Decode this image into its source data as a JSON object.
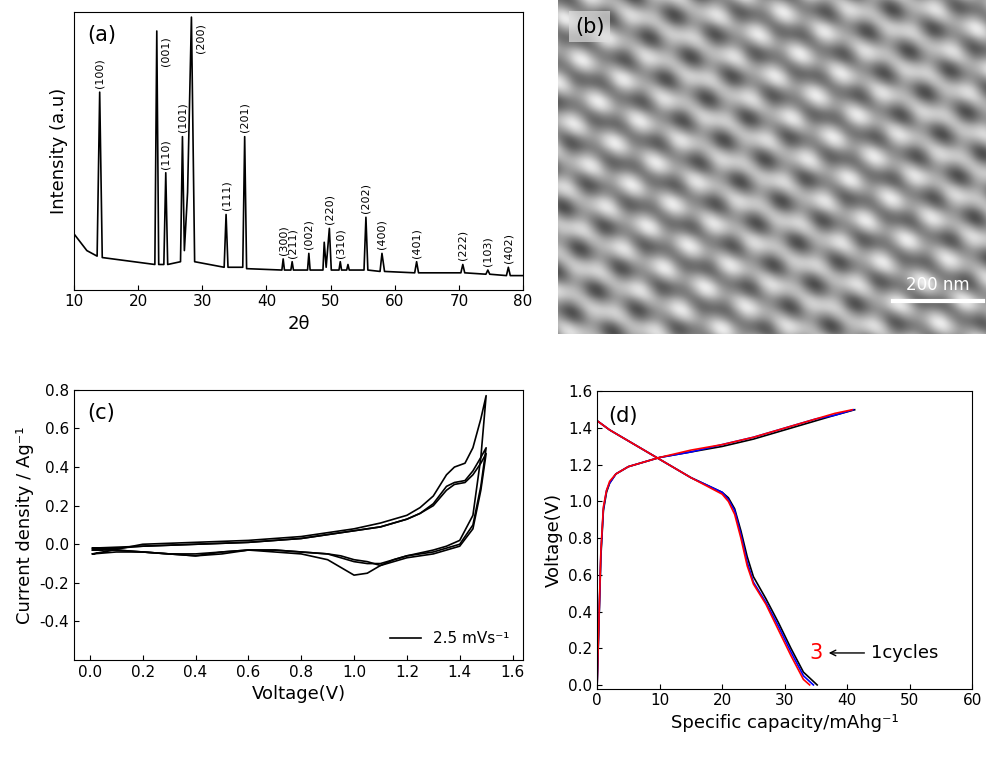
{
  "chart_data": [
    {
      "type": "line",
      "annotations": [
        "(a)"
      ],
      "xlabel": "2θ",
      "ylabel": "Intensity (a.u)",
      "color": "#000000",
      "x": [
        10,
        11,
        12,
        13.6,
        14.0,
        14.4,
        22.6,
        22.9,
        23.2,
        24.0,
        24.3,
        24.6,
        26.6,
        26.9,
        27.2,
        27.7,
        28.3,
        28.8,
        33.4,
        33.7,
        34.0,
        36.3,
        36.6,
        36.9,
        42.4,
        42.6,
        42.8,
        43.8,
        44.0,
        44.2,
        46.4,
        46.6,
        46.8,
        48.8,
        49.0,
        49.3,
        49.8,
        50.1,
        51.3,
        51.5,
        51.7,
        52.5,
        52.7,
        52.9,
        55.2,
        55.5,
        55.8,
        57.7,
        58.0,
        58.4,
        63.1,
        63.4,
        63.7,
        70.3,
        70.6,
        70.9,
        74.2,
        74.5,
        74.8,
        77.4,
        77.7,
        78.0,
        80
      ],
      "values": [
        20,
        17,
        14,
        12,
        71,
        11.5,
        9,
        93,
        9,
        9,
        42,
        9,
        10,
        55,
        14,
        35,
        98,
        10,
        8,
        27,
        8,
        8,
        55,
        7.5,
        7,
        11,
        7,
        7,
        10,
        7,
        7,
        13,
        7,
        7,
        17,
        8,
        22,
        7,
        7,
        10,
        7,
        7,
        9,
        7,
        7,
        26,
        7,
        6.5,
        13,
        6.5,
        6,
        10,
        6,
        6,
        9,
        6,
        5.5,
        7,
        5.5,
        5,
        8,
        5,
        5
      ],
      "xlim": [
        10,
        80
      ],
      "xticks": [
        10,
        20,
        30,
        40,
        50,
        60,
        70,
        80
      ],
      "ylim": [
        0,
        100
      ],
      "tick_labels": "x",
      "peak_labels": [
        {
          "x": 14.0,
          "label": "(100)"
        },
        {
          "x": 22.9,
          "label": "(001)"
        },
        {
          "x": 24.3,
          "label": "(110)"
        },
        {
          "x": 26.9,
          "label": "(101)"
        },
        {
          "x": 28.3,
          "label": "(200)"
        },
        {
          "x": 33.7,
          "label": "(111)"
        },
        {
          "x": 36.6,
          "label": "(201)"
        },
        {
          "x": 42.6,
          "label": "(300)"
        },
        {
          "x": 44.0,
          "label": "(211)"
        },
        {
          "x": 46.6,
          "label": "(002)"
        },
        {
          "x": 49.8,
          "label": "(220)"
        },
        {
          "x": 51.5,
          "label": "(310)"
        },
        {
          "x": 55.5,
          "label": "(202)"
        },
        {
          "x": 58.0,
          "label": "(400)"
        },
        {
          "x": 63.4,
          "label": "(401)"
        },
        {
          "x": 70.6,
          "label": "(222)"
        },
        {
          "x": 74.5,
          "label": "(103)"
        },
        {
          "x": 77.7,
          "label": "(402)"
        }
      ]
    },
    {
      "type": "image",
      "annotations": [
        "(b)",
        "200 nm"
      ]
    },
    {
      "type": "line",
      "annotations": [
        "(c)"
      ],
      "xlabel": "Voltage(V)",
      "ylabel": "Current density / Ag⁻¹",
      "xlim": [
        -0.06,
        1.64
      ],
      "xticks": [
        {
          "value": 0,
          "label": "0.0"
        },
        0.2,
        0.4,
        0.6,
        0.8,
        {
          "value": 1,
          "label": "1.0"
        },
        1.2,
        1.4,
        1.6
      ],
      "ylim": [
        -0.6,
        0.8
      ],
      "yticks": [
        -0.4,
        -0.2,
        {
          "value": 0,
          "label": "0.0"
        },
        0.2,
        0.4,
        0.6,
        0.8
      ],
      "legend": "lower right",
      "series": [
        {
          "name": "2.5 mVs⁻¹",
          "color": "#000000",
          "x": [
            0.01,
            0.2,
            0.4,
            0.6,
            0.8,
            0.9,
            1.0,
            1.1,
            1.2,
            1.25,
            1.3,
            1.35,
            1.38,
            1.42,
            1.45,
            1.48,
            1.5,
            1.5,
            1.48,
            1.45,
            1.4,
            1.35,
            1.3,
            1.2,
            1.15,
            1.1,
            1.05,
            1.0,
            0.95,
            0.9,
            0.8,
            0.7,
            0.6,
            0.5,
            0.4,
            0.3,
            0.2,
            0.1,
            0.01
          ],
          "values": [
            -0.05,
            0.0,
            0.01,
            0.02,
            0.04,
            0.06,
            0.08,
            0.11,
            0.15,
            0.19,
            0.25,
            0.36,
            0.4,
            0.42,
            0.5,
            0.65,
            0.77,
            0.77,
            0.45,
            0.15,
            0.02,
            -0.01,
            -0.03,
            -0.06,
            -0.08,
            -0.11,
            -0.15,
            -0.16,
            -0.12,
            -0.08,
            -0.05,
            -0.04,
            -0.03,
            -0.05,
            -0.06,
            -0.05,
            -0.04,
            -0.04,
            -0.05
          ]
        },
        {
          "color": "#000000",
          "x": [
            0.01,
            0.2,
            0.4,
            0.6,
            0.8,
            0.9,
            1.0,
            1.1,
            1.2,
            1.25,
            1.3,
            1.35,
            1.38,
            1.42,
            1.45,
            1.48,
            1.5,
            1.5,
            1.48,
            1.45,
            1.4,
            1.35,
            1.3,
            1.2,
            1.15,
            1.1,
            1.05,
            1.0,
            0.95,
            0.9,
            0.8,
            0.7,
            0.6,
            0.5,
            0.4,
            0.3,
            0.2,
            0.1,
            0.01
          ],
          "values": [
            -0.03,
            -0.01,
            0.0,
            0.01,
            0.03,
            0.05,
            0.07,
            0.09,
            0.13,
            0.16,
            0.21,
            0.3,
            0.32,
            0.33,
            0.38,
            0.45,
            0.5,
            0.5,
            0.3,
            0.1,
            0.0,
            -0.02,
            -0.04,
            -0.06,
            -0.08,
            -0.1,
            -0.1,
            -0.09,
            -0.07,
            -0.05,
            -0.04,
            -0.03,
            -0.03,
            -0.04,
            -0.06,
            -0.05,
            -0.04,
            -0.03,
            -0.03
          ]
        },
        {
          "color": "#000000",
          "x": [
            0.01,
            0.2,
            0.4,
            0.6,
            0.8,
            0.9,
            1.0,
            1.1,
            1.2,
            1.25,
            1.3,
            1.35,
            1.38,
            1.42,
            1.45,
            1.48,
            1.5,
            1.5,
            1.48,
            1.45,
            1.4,
            1.35,
            1.3,
            1.2,
            1.15,
            1.1,
            1.05,
            1.0,
            0.95,
            0.9,
            0.8,
            0.7,
            0.6,
            0.5,
            0.4,
            0.3,
            0.2,
            0.1,
            0.01
          ],
          "values": [
            -0.02,
            -0.01,
            0.0,
            0.01,
            0.03,
            0.05,
            0.07,
            0.09,
            0.13,
            0.16,
            0.2,
            0.28,
            0.31,
            0.32,
            0.36,
            0.42,
            0.47,
            0.47,
            0.28,
            0.08,
            -0.01,
            -0.03,
            -0.05,
            -0.07,
            -0.09,
            -0.11,
            -0.09,
            -0.08,
            -0.06,
            -0.05,
            -0.04,
            -0.03,
            -0.03,
            -0.04,
            -0.05,
            -0.05,
            -0.04,
            -0.03,
            -0.02
          ]
        }
      ]
    },
    {
      "type": "line",
      "annotations": [
        "(d)",
        {
          "text": "3",
          "color": "#ff0000"
        },
        {
          "text": "1cycles"
        }
      ],
      "xlabel": "Specific capacity/mAhg⁻¹",
      "ylabel": "Voltage(V)",
      "xlim": [
        0,
        60
      ],
      "xticks": [
        0,
        10,
        20,
        30,
        40,
        50,
        60
      ],
      "ylim": [
        -0.02,
        1.6
      ],
      "yticks": [
        {
          "value": 0,
          "label": "0.0"
        },
        0.2,
        0.4,
        0.6,
        0.8,
        {
          "value": 1,
          "label": "1.0"
        },
        1.2,
        1.4,
        1.6
      ],
      "series": [
        {
          "color": "#000000",
          "x": [
            0,
            2,
            5,
            10,
            15,
            20,
            21,
            22,
            23,
            24,
            25,
            27,
            29,
            31,
            33,
            35.2
          ],
          "values": [
            1.44,
            1.39,
            1.33,
            1.23,
            1.13,
            1.05,
            1.02,
            0.96,
            0.84,
            0.7,
            0.59,
            0.47,
            0.34,
            0.2,
            0.07,
            0.0
          ]
        },
        {
          "color": "#000000",
          "x": [
            0,
            0.3,
            0.6,
            1,
            1.5,
            2,
            3,
            5,
            10,
            15,
            20,
            25,
            30,
            35,
            38,
            41.2
          ],
          "values": [
            0.0,
            0.35,
            0.7,
            0.95,
            1.05,
            1.1,
            1.15,
            1.19,
            1.24,
            1.27,
            1.3,
            1.34,
            1.39,
            1.44,
            1.47,
            1.5
          ]
        },
        {
          "color": "#0000ff",
          "x": [
            0,
            2,
            5,
            10,
            15,
            20,
            21,
            22,
            23,
            24,
            25,
            27,
            29,
            31,
            33,
            34.6
          ],
          "values": [
            1.44,
            1.39,
            1.33,
            1.23,
            1.13,
            1.05,
            1.01,
            0.95,
            0.82,
            0.67,
            0.56,
            0.45,
            0.32,
            0.18,
            0.05,
            0.0
          ]
        },
        {
          "color": "#0000ff",
          "x": [
            0,
            0.3,
            0.6,
            1,
            1.5,
            2,
            3,
            5,
            10,
            15,
            20,
            25,
            30,
            35,
            38,
            41.0
          ],
          "values": [
            0.0,
            0.36,
            0.72,
            0.96,
            1.06,
            1.1,
            1.15,
            1.19,
            1.24,
            1.27,
            1.31,
            1.35,
            1.4,
            1.45,
            1.47,
            1.5
          ]
        },
        {
          "color": "#ff0000",
          "x": [
            0,
            2,
            5,
            10,
            15,
            20,
            21,
            22,
            23,
            24,
            25,
            27,
            29,
            31,
            33,
            34.0
          ],
          "values": [
            1.44,
            1.39,
            1.33,
            1.23,
            1.13,
            1.04,
            1.0,
            0.93,
            0.8,
            0.65,
            0.55,
            0.44,
            0.3,
            0.16,
            0.03,
            0.0
          ]
        },
        {
          "color": "#ff0000",
          "x": [
            0,
            0.3,
            0.6,
            1,
            1.5,
            2,
            3,
            5,
            10,
            15,
            20,
            25,
            30,
            35,
            38,
            40.8
          ],
          "values": [
            0.0,
            0.37,
            0.73,
            0.97,
            1.06,
            1.11,
            1.15,
            1.19,
            1.24,
            1.28,
            1.31,
            1.35,
            1.4,
            1.45,
            1.48,
            1.5
          ]
        }
      ]
    }
  ]
}
